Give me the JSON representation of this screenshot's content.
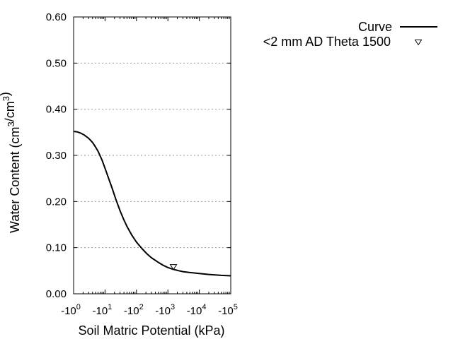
{
  "chart_data": {
    "type": "line",
    "xlabel": "Soil Matric Potential (kPa)",
    "ylabel": "Water Content (cm3/cm3)",
    "xscale": "log",
    "xlim": [
      1,
      100000
    ],
    "ylim": [
      0,
      0.6
    ],
    "grid": "horizontal-dotted",
    "legend_position": "top-right",
    "x_tick_labels": [
      {
        "value": 1,
        "base": "-10",
        "exp": "0"
      },
      {
        "value": 10,
        "base": "-10",
        "exp": "1"
      },
      {
        "value": 100,
        "base": "-10",
        "exp": "2"
      },
      {
        "value": 1000,
        "base": "-10",
        "exp": "3"
      },
      {
        "value": 10000,
        "base": "-10",
        "exp": "4"
      },
      {
        "value": 100000,
        "base": "-10",
        "exp": "5"
      }
    ],
    "y_ticks": [
      0.0,
      0.1,
      0.2,
      0.3,
      0.4,
      0.5,
      0.6
    ],
    "y_tick_labels": [
      "0.00",
      "0.10",
      "0.20",
      "0.30",
      "0.40",
      "0.50",
      "0.60"
    ],
    "series": [
      {
        "name": "Curve",
        "kind": "line",
        "color": "#000000",
        "x": [
          1,
          1.3,
          1.7,
          2.2,
          3,
          4,
          5,
          6,
          8,
          10,
          13,
          17,
          22,
          30,
          40,
          50,
          70,
          100,
          150,
          220,
          300,
          500,
          700,
          1000,
          1500,
          2200,
          3000,
          5000,
          10000,
          20000,
          50000,
          100000
        ],
        "y": [
          0.352,
          0.351,
          0.348,
          0.344,
          0.337,
          0.328,
          0.318,
          0.309,
          0.29,
          0.272,
          0.25,
          0.228,
          0.205,
          0.18,
          0.16,
          0.146,
          0.128,
          0.112,
          0.098,
          0.086,
          0.078,
          0.068,
          0.062,
          0.057,
          0.053,
          0.05,
          0.048,
          0.046,
          0.044,
          0.042,
          0.04,
          0.039
        ]
      },
      {
        "name": "<2 mm AD Theta 1500",
        "kind": "point",
        "marker": "triangle-down",
        "color": "#000000",
        "x": [
          1500
        ],
        "y": [
          0.058
        ]
      }
    ]
  }
}
